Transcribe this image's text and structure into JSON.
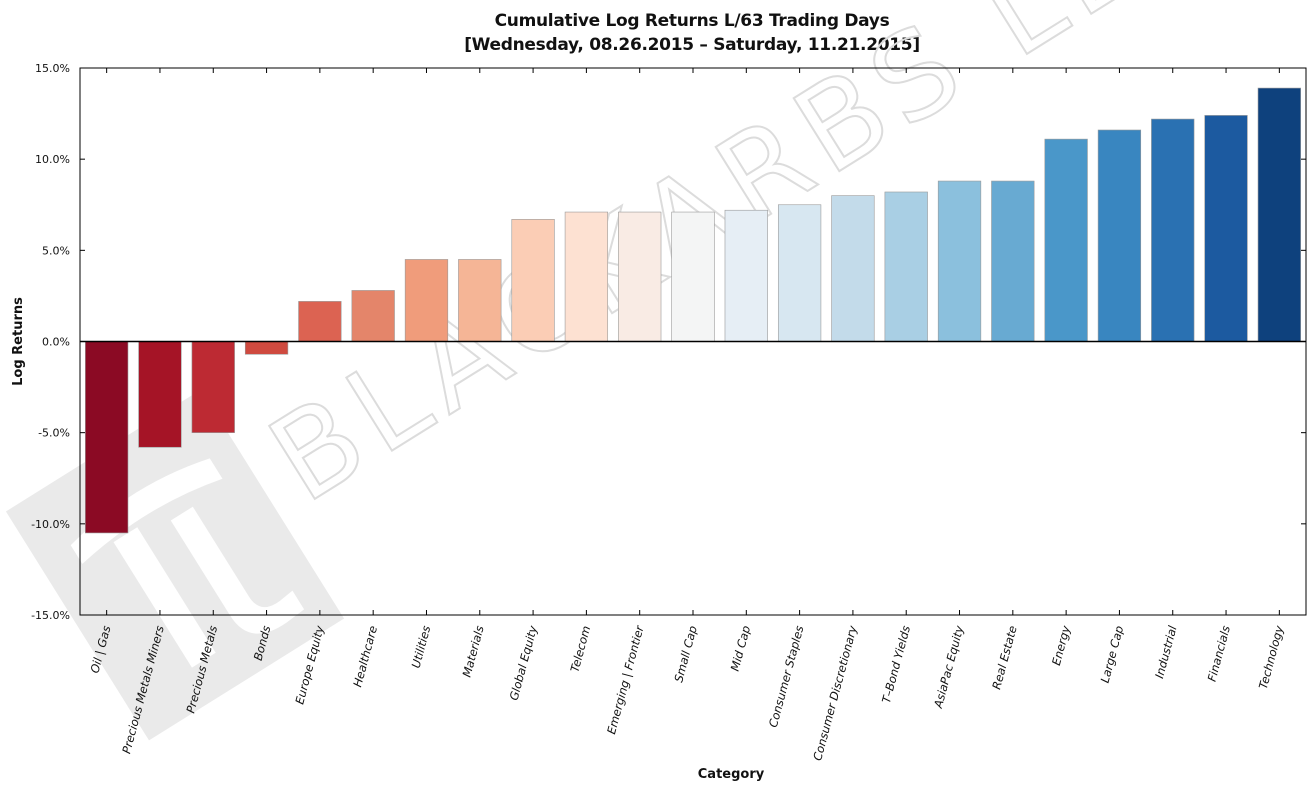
{
  "title": {
    "line1": "Cumulative Log Returns L/63 Trading Days",
    "line2": "[Wednesday, 08.26.2015 – Saturday, 11.21.2015]"
  },
  "watermark": {
    "text": "BLACKARBS LLC",
    "color": "#dcdcdc"
  },
  "chart_data": {
    "type": "bar",
    "title": "Cumulative Log Returns L/63 Trading Days [Wednesday, 08.26.2015 – Saturday, 11.21.2015]",
    "xlabel": "Category",
    "ylabel": "Log Returns",
    "ylim": [
      -15,
      15
    ],
    "yticks": [
      15,
      10,
      5,
      0,
      -5,
      -10,
      -15
    ],
    "ytick_labels": [
      "15.0%",
      "10.0%",
      "5.0%",
      "0.0%",
      "-5.0%",
      "-10.0%",
      "-15.0%"
    ],
    "grid": false,
    "legend": "none",
    "categories": [
      "Oil | Gas",
      "Precious Metals Miners",
      "Precious Metals",
      "Bonds",
      "Europe Equity",
      "Healthcare",
      "Utilities",
      "Materials",
      "Global Equity",
      "Telecom",
      "Emerging | Frontier",
      "Small Cap",
      "Mid Cap",
      "Consumer Staples",
      "Consumer Discretionary",
      "T–Bond Yields",
      "AsiaPac Equity",
      "Real Estate",
      "Energy",
      "Large Cap",
      "Industrial",
      "Financials",
      "Technology"
    ],
    "values": [
      -10.5,
      -5.8,
      -5.0,
      -0.7,
      2.2,
      2.8,
      4.5,
      4.5,
      6.7,
      7.1,
      7.1,
      7.1,
      7.2,
      7.5,
      8.0,
      8.2,
      8.8,
      8.8,
      11.1,
      11.6,
      12.2,
      12.4,
      13.9
    ],
    "colors": [
      "#8b0a24",
      "#a51426",
      "#bd2a33",
      "#cf4a3f",
      "#dc6352",
      "#e4856a",
      "#f09c7b",
      "#f5b596",
      "#fbcdb5",
      "#fde1d2",
      "#f9ebe4",
      "#f4f5f5",
      "#e6eef5",
      "#d7e7f1",
      "#c3dbea",
      "#a9cfe4",
      "#8bc0dd",
      "#68aad2",
      "#4a97c9",
      "#3986c0",
      "#2a71b2",
      "#1c5aa0",
      "#0e417d"
    ],
    "zero_line_color": "#000000"
  }
}
